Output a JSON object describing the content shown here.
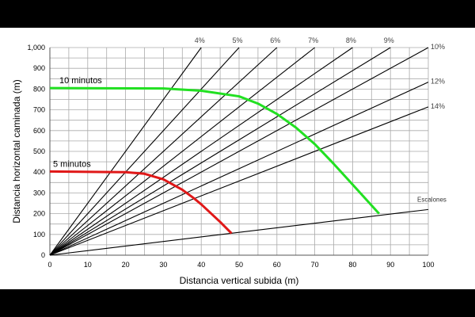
{
  "chart_data": {
    "type": "line",
    "xlabel": "Distancia vertical subida (m)",
    "ylabel": "Distancia horizontal caminada (m)",
    "xlim": [
      0,
      100
    ],
    "ylim": [
      0,
      1000
    ],
    "grid": true,
    "x_ticks": [
      0,
      10,
      20,
      30,
      40,
      50,
      60,
      70,
      80,
      90,
      100
    ],
    "y_ticks": [
      0,
      100,
      200,
      300,
      400,
      500,
      600,
      700,
      800,
      900,
      1000
    ],
    "y_tick_labels": [
      "0",
      "100",
      "200",
      "300",
      "400",
      "500",
      "600",
      "700",
      "800",
      "900",
      "1,000"
    ],
    "grade_lines": [
      {
        "label": "4%",
        "slope": 25
      },
      {
        "label": "5%",
        "slope": 20
      },
      {
        "label": "6%",
        "slope": 16.667
      },
      {
        "label": "7%",
        "slope": 14.286
      },
      {
        "label": "8%",
        "slope": 12.5
      },
      {
        "label": "9%",
        "slope": 11.111
      },
      {
        "label": "10%",
        "slope": 10
      },
      {
        "label": "12%",
        "slope": 8.333
      },
      {
        "label": "14%",
        "slope": 7.143
      },
      {
        "label": "Escalones",
        "slope": 2.2
      }
    ],
    "series": [
      {
        "name": "10 minutos",
        "color": "#22e022",
        "x": [
          0,
          30,
          40,
          50,
          55,
          60,
          65,
          70,
          75,
          80,
          87
        ],
        "y": [
          805,
          803,
          792,
          765,
          730,
          680,
          615,
          535,
          440,
          340,
          200
        ]
      },
      {
        "name": "5 minutos",
        "color": "#e01818",
        "x": [
          0,
          20,
          25,
          30,
          35,
          38,
          40,
          45,
          48
        ],
        "y": [
          403,
          400,
          392,
          365,
          315,
          275,
          245,
          160,
          105
        ]
      }
    ]
  }
}
